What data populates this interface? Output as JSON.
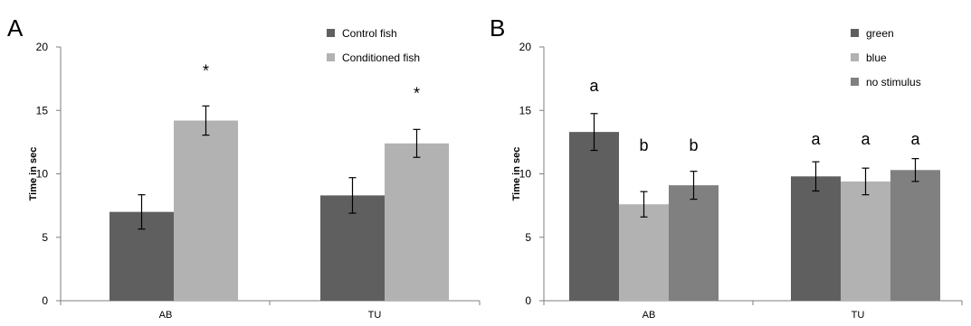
{
  "chart_data": [
    {
      "panel": "A",
      "type": "bar",
      "title": "",
      "xlabel": "",
      "ylabel": "Time in sec",
      "ylim": [
        0,
        20
      ],
      "yticks": [
        0,
        5,
        10,
        15,
        20
      ],
      "categories": [
        "AB",
        "TU"
      ],
      "series": [
        {
          "name": "Control fish",
          "color": "#5f5f5f",
          "values": [
            7.0,
            8.3
          ],
          "errors": [
            1.35,
            1.4
          ]
        },
        {
          "name": "Conditioned fish",
          "color": "#b2b2b2",
          "values": [
            14.2,
            12.4
          ],
          "errors": [
            1.15,
            1.1
          ]
        }
      ],
      "annotations": [
        {
          "text": "*",
          "category": 0,
          "series": 1,
          "y": 17.7
        },
        {
          "text": "*",
          "category": 1,
          "series": 1,
          "y": 15.9
        }
      ],
      "grid": false,
      "legend": "top-right"
    },
    {
      "panel": "B",
      "type": "bar",
      "title": "",
      "xlabel": "",
      "ylabel": "Time in sec",
      "ylim": [
        0,
        20
      ],
      "yticks": [
        0,
        5,
        10,
        15,
        20
      ],
      "categories": [
        "AB",
        "TU"
      ],
      "series": [
        {
          "name": "green",
          "color": "#5f5f5f",
          "values": [
            13.3,
            9.8
          ],
          "errors": [
            1.45,
            1.15
          ]
        },
        {
          "name": "blue",
          "color": "#b2b2b2",
          "values": [
            7.6,
            9.4
          ],
          "errors": [
            1.0,
            1.05
          ]
        },
        {
          "name": "no stimulus",
          "color": "#808080",
          "values": [
            9.1,
            10.3
          ],
          "errors": [
            1.1,
            0.9
          ]
        }
      ],
      "annotations": [
        {
          "text": "a",
          "category": 0,
          "series": 0,
          "y": 16.5
        },
        {
          "text": "b",
          "category": 0,
          "series": 1,
          "y": 11.8
        },
        {
          "text": "b",
          "category": 0,
          "series": 2,
          "y": 11.8
        },
        {
          "text": "a",
          "category": 1,
          "series": 0,
          "y": 12.3
        },
        {
          "text": "a",
          "category": 1,
          "series": 1,
          "y": 12.3
        },
        {
          "text": "a",
          "category": 1,
          "series": 2,
          "y": 12.3
        }
      ],
      "grid": false,
      "legend": "top-right"
    }
  ]
}
